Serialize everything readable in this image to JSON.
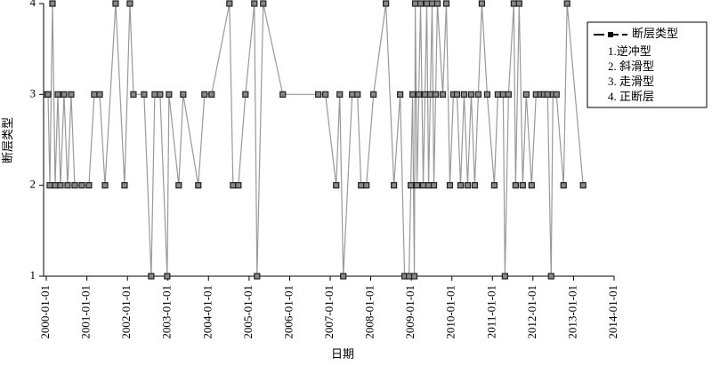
{
  "chart_data": {
    "type": "line",
    "x_label": "日期",
    "y_label": "断层类型",
    "x": [
      "2000-01-01",
      "2000-01-17",
      "2000-02-02",
      "2000-02-26",
      "2000-03-21",
      "2000-04-14",
      "2000-05-08",
      "2000-06-09",
      "2000-07-11",
      "2000-08-12",
      "2000-09-13",
      "2000-11-16",
      "2001-01-19",
      "2001-03-08",
      "2001-04-26",
      "2001-06-13",
      "2001-09-17",
      "2001-12-06",
      "2002-01-23",
      "2002-02-24",
      "2002-05-31",
      "2002-08-03",
      "2002-09-04",
      "2002-10-22",
      "2002-12-25",
      "2003-01-10",
      "2003-04-08",
      "2003-05-18",
      "2003-10-01",
      "2003-11-26",
      "2004-01-29",
      "2004-07-08",
      "2004-08-09",
      "2004-09-26",
      "2004-11-29",
      "2005-02-17",
      "2005-03-13",
      "2005-05-08",
      "2005-10-31",
      "2006-09-16",
      "2006-11-19",
      "2007-02-24",
      "2007-03-28",
      "2007-04-29",
      "2007-07-18",
      "2007-09-04",
      "2007-10-06",
      "2007-11-23",
      "2008-01-26",
      "2008-05-17",
      "2008-07-28",
      "2008-09-22",
      "2008-11-01",
      "2008-12-11",
      "2008-12-27",
      "2009-01-12",
      "2009-01-28",
      "2009-02-05",
      "2009-02-21",
      "2009-03-09",
      "2009-03-25",
      "2009-04-18",
      "2009-05-04",
      "2009-05-20",
      "2009-06-05",
      "2009-06-21",
      "2009-07-07",
      "2009-07-23",
      "2009-08-08",
      "2009-08-24",
      "2009-10-11",
      "2009-11-12",
      "2009-12-14",
      "2010-01-15",
      "2010-02-16",
      "2010-03-20",
      "2010-04-21",
      "2010-05-23",
      "2010-06-24",
      "2010-07-26",
      "2010-08-27",
      "2010-09-28",
      "2010-11-15",
      "2011-01-18",
      "2011-02-19",
      "2011-04-08",
      "2011-04-24",
      "2011-05-26",
      "2011-07-13",
      "2011-07-29",
      "2011-08-30",
      "2011-10-01",
      "2011-11-02",
      "2011-12-20",
      "2012-01-29",
      "2012-03-09",
      "2012-04-10",
      "2012-05-12",
      "2012-06-13",
      "2012-06-29",
      "2012-07-31",
      "2012-10-03",
      "2012-11-04",
      "2013-03-28"
    ],
    "series": [
      {
        "name": "断层类型",
        "color": "#999999",
        "marker_color": "#222222",
        "values": [
          3,
          3,
          2,
          4,
          2,
          3,
          2,
          3,
          2,
          3,
          2,
          2,
          2,
          3,
          3,
          2,
          4,
          2,
          4,
          3,
          3,
          1,
          3,
          3,
          1,
          3,
          2,
          3,
          2,
          3,
          3,
          4,
          2,
          2,
          3,
          4,
          1,
          4,
          3,
          3,
          3,
          2,
          3,
          1,
          3,
          3,
          2,
          2,
          3,
          4,
          2,
          3,
          1,
          1,
          2,
          3,
          1,
          4,
          2,
          3,
          4,
          2,
          3,
          4,
          2,
          3,
          4,
          2,
          3,
          4,
          3,
          4,
          2,
          3,
          3,
          2,
          3,
          2,
          3,
          2,
          3,
          4,
          3,
          2,
          3,
          3,
          1,
          3,
          4,
          2,
          4,
          2,
          3,
          2,
          3,
          3,
          3,
          3,
          1,
          3,
          3,
          2,
          4,
          2
        ]
      }
    ],
    "annotations": [
      "1.逆冲型",
      "2. 斜滑型",
      "3. 走滑型",
      "4. 正断层"
    ],
    "xlim": [
      "2000-01-01",
      "2014-01-01"
    ],
    "xticks": [
      "2000-01-01",
      "2001-01-01",
      "2002-01-01",
      "2003-01-01",
      "2004-01-01",
      "2005-01-01",
      "2006-01-01",
      "2007-01-01",
      "2008-01-01",
      "2009-01-01",
      "2010-01-01",
      "2011-01-01",
      "2012-01-01",
      "2013-01-01",
      "2014-01-01"
    ],
    "ylim": [
      1,
      4
    ],
    "yticks": [
      1,
      2,
      3,
      4
    ],
    "grid": false
  }
}
